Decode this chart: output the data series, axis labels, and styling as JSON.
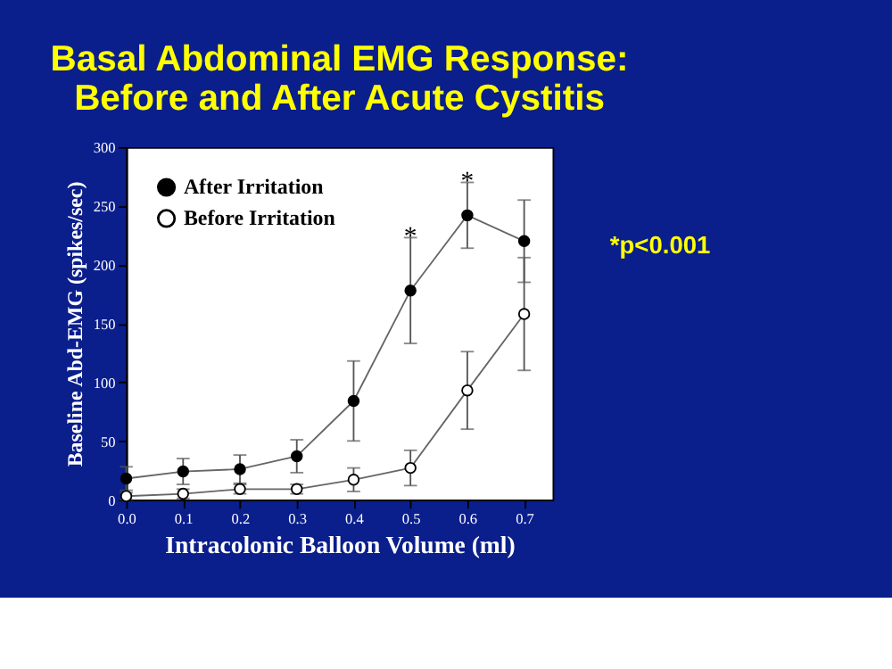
{
  "chart_data": {
    "type": "line",
    "title": [
      "Basal Abdominal EMG Response:",
      "Before and After Acute Cystitis"
    ],
    "xlabel": "Intracolonic Balloon Volume (ml)",
    "ylabel": "Baseline Abd-EMG (spikes/sec)",
    "x": [
      0.0,
      0.1,
      0.2,
      0.3,
      0.4,
      0.5,
      0.6,
      0.7
    ],
    "series": [
      {
        "name": "After Irritation",
        "color": "#000000",
        "values": [
          18,
          24,
          26,
          37,
          84,
          178,
          242,
          220
        ],
        "errors": [
          10,
          11,
          12,
          14,
          34,
          45,
          28,
          35
        ]
      },
      {
        "name": "Before Irritation",
        "color": "#ffffff",
        "values": [
          3,
          5,
          9,
          9,
          17,
          27,
          93,
          158
        ],
        "errors": [
          3,
          4,
          4,
          4,
          10,
          15,
          33,
          48
        ]
      }
    ],
    "xlim": [
      0,
      0.75
    ],
    "xticks": [
      {
        "value": 0,
        "label": "0.0"
      },
      0.1,
      0.2,
      0.3,
      0.4,
      0.5,
      0.6,
      0.7
    ],
    "ylim": [
      0,
      300
    ],
    "yticks": [
      0,
      50,
      100,
      150,
      200,
      250,
      300
    ],
    "marker": "circle",
    "legend": "top left",
    "grid": false,
    "annotations": [
      {
        "text": "*",
        "x": 0.5,
        "y": 230
      },
      {
        "text": "*",
        "x": 0.6,
        "y": 277
      },
      "*p<0.001"
    ]
  }
}
